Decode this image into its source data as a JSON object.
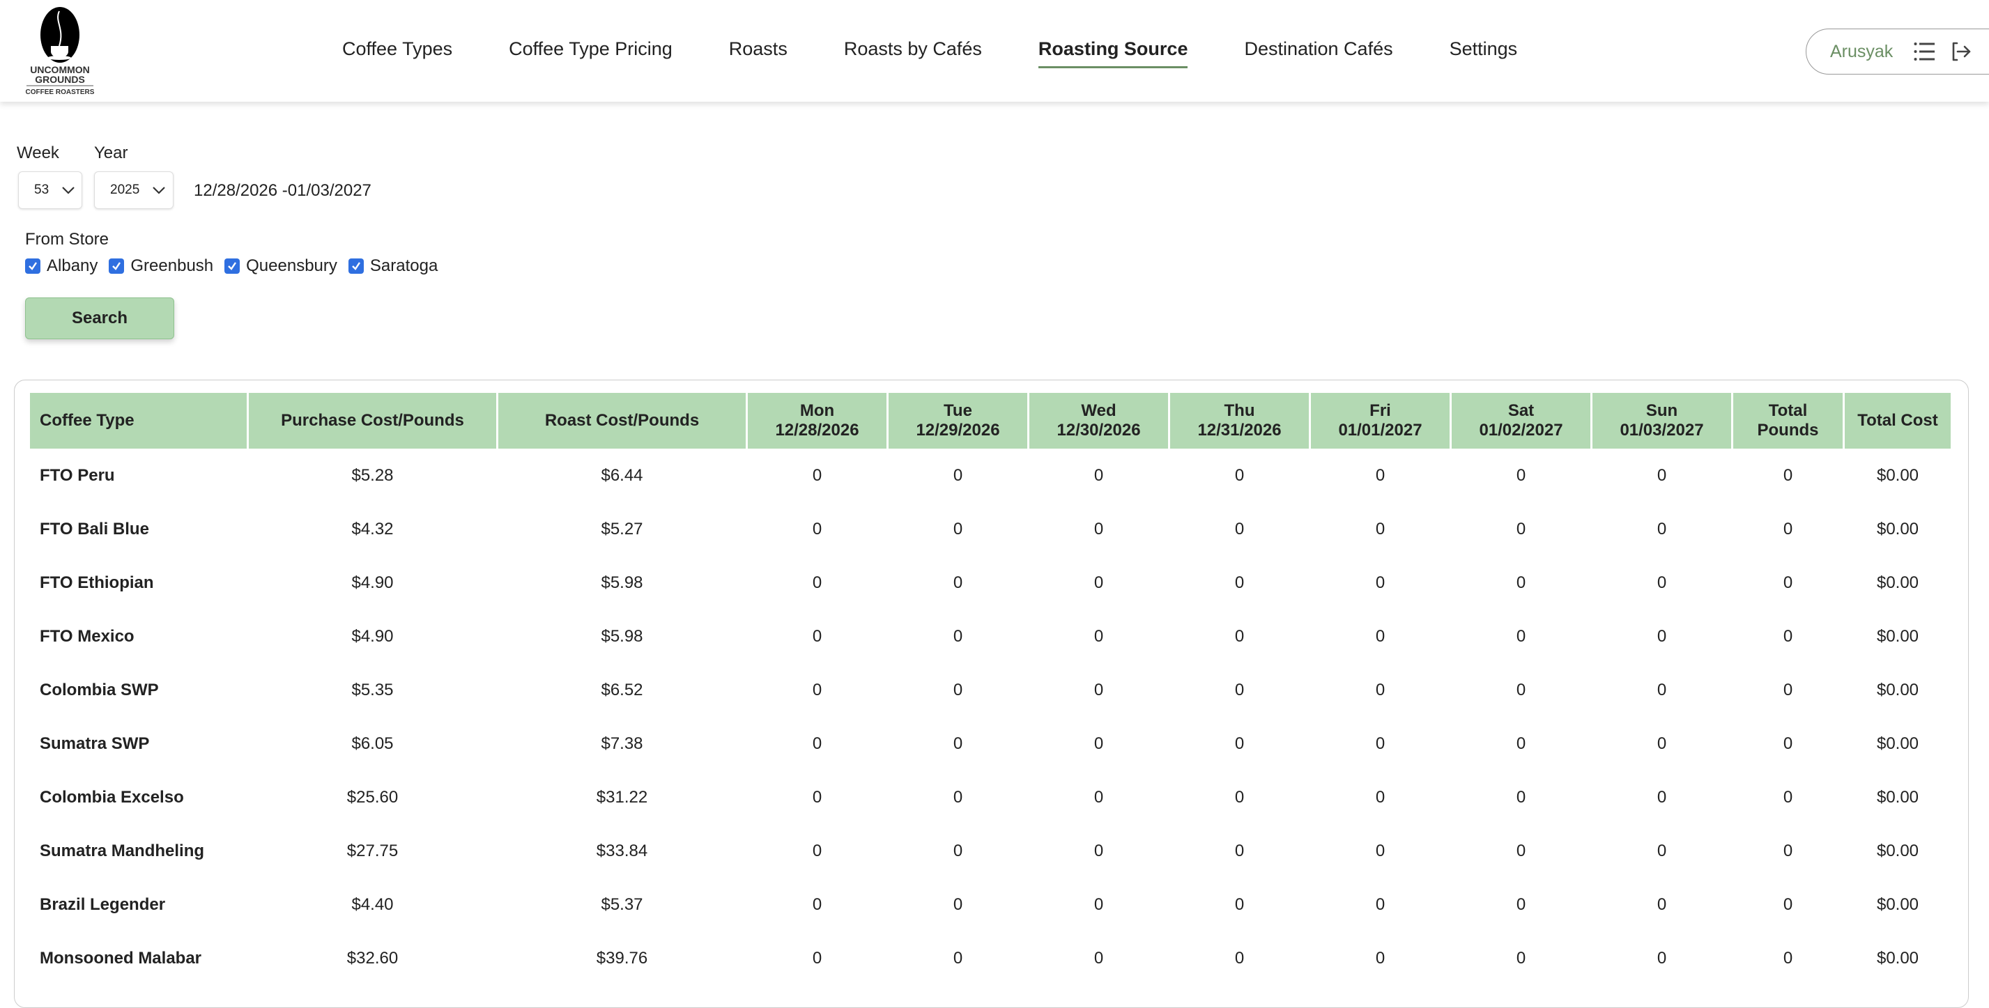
{
  "brand": {
    "logo_line1": "UNCOMMON",
    "logo_line2": "GROUNDS",
    "logo_line3": "COFFEE ROASTERS"
  },
  "nav": [
    {
      "label": "Coffee Types",
      "active": false
    },
    {
      "label": "Coffee Type Pricing",
      "active": false
    },
    {
      "label": "Roasts",
      "active": false
    },
    {
      "label": "Roasts by Cafés",
      "active": false
    },
    {
      "label": "Roasting Source",
      "active": true
    },
    {
      "label": "Destination Cafés",
      "active": false
    },
    {
      "label": "Settings",
      "active": false
    }
  ],
  "user": {
    "name": "Arusyak",
    "icons": [
      "list-icon",
      "logout-icon"
    ]
  },
  "filters": {
    "week_label": "Week",
    "week_value": "53",
    "year_label": "Year",
    "year_value": "2025",
    "date_range": "12/28/2026 -01/03/2027",
    "from_store_label": "From Store",
    "stores": [
      {
        "label": "Albany",
        "checked": true
      },
      {
        "label": "Greenbush",
        "checked": true
      },
      {
        "label": "Queensbury",
        "checked": true
      },
      {
        "label": "Saratoga",
        "checked": true
      }
    ],
    "search_label": "Search"
  },
  "colors": {
    "accent": "#6b8f64",
    "table_header": "#b3d9b3",
    "checkbox": "#2f6fe0"
  },
  "table": {
    "headers": [
      [
        "Coffee Type"
      ],
      [
        "Purchase Cost/Pounds"
      ],
      [
        "Roast Cost/Pounds"
      ],
      [
        "Mon",
        "12/28/2026"
      ],
      [
        "Tue",
        "12/29/2026"
      ],
      [
        "Wed",
        "12/30/2026"
      ],
      [
        "Thu",
        "12/31/2026"
      ],
      [
        "Fri",
        "01/01/2027"
      ],
      [
        "Sat",
        "01/02/2027"
      ],
      [
        "Sun",
        "01/03/2027"
      ],
      [
        "Total Pounds"
      ],
      [
        "Total Cost"
      ]
    ],
    "rows": [
      [
        "FTO Peru",
        "$5.28",
        "$6.44",
        "0",
        "0",
        "0",
        "0",
        "0",
        "0",
        "0",
        "0",
        "$0.00"
      ],
      [
        "FTO Bali Blue",
        "$4.32",
        "$5.27",
        "0",
        "0",
        "0",
        "0",
        "0",
        "0",
        "0",
        "0",
        "$0.00"
      ],
      [
        "FTO Ethiopian",
        "$4.90",
        "$5.98",
        "0",
        "0",
        "0",
        "0",
        "0",
        "0",
        "0",
        "0",
        "$0.00"
      ],
      [
        "FTO Mexico",
        "$4.90",
        "$5.98",
        "0",
        "0",
        "0",
        "0",
        "0",
        "0",
        "0",
        "0",
        "$0.00"
      ],
      [
        "Colombia SWP",
        "$5.35",
        "$6.52",
        "0",
        "0",
        "0",
        "0",
        "0",
        "0",
        "0",
        "0",
        "$0.00"
      ],
      [
        "Sumatra SWP",
        "$6.05",
        "$7.38",
        "0",
        "0",
        "0",
        "0",
        "0",
        "0",
        "0",
        "0",
        "$0.00"
      ],
      [
        "Colombia Excelso",
        "$25.60",
        "$31.22",
        "0",
        "0",
        "0",
        "0",
        "0",
        "0",
        "0",
        "0",
        "$0.00"
      ],
      [
        "Sumatra Mandheling",
        "$27.75",
        "$33.84",
        "0",
        "0",
        "0",
        "0",
        "0",
        "0",
        "0",
        "0",
        "$0.00"
      ],
      [
        "Brazil Legender",
        "$4.40",
        "$5.37",
        "0",
        "0",
        "0",
        "0",
        "0",
        "0",
        "0",
        "0",
        "$0.00"
      ],
      [
        "Monsooned Malabar",
        "$32.60",
        "$39.76",
        "0",
        "0",
        "0",
        "0",
        "0",
        "0",
        "0",
        "0",
        "$0.00"
      ]
    ]
  }
}
